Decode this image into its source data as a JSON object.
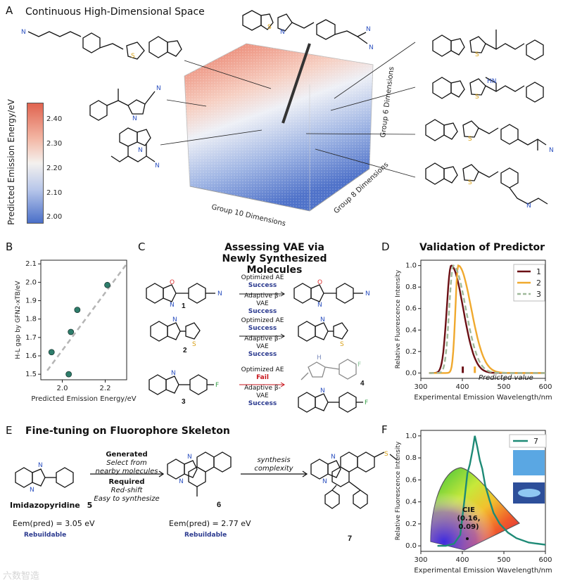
{
  "panels": {
    "A": {
      "letter": "A",
      "title": "Continuous High-Dimensional Space",
      "colorbar_label": "Predicted Emission Energy/eV",
      "colorbar_ticks": [
        "2.40",
        "2.30",
        "2.20",
        "2.10",
        "2.00"
      ],
      "axis_labels": [
        "Group 10 Dimensions",
        "Group 8 Dimensions",
        "Group 6 Dimensions"
      ],
      "colors": {
        "high": "#e0634f",
        "mid": "#f4f1ee",
        "low": "#4a6fc8"
      }
    },
    "B": {
      "letter": "B"
    },
    "C": {
      "letter": "C",
      "title_line1": "Assessing VAE via",
      "title_line2": "Newly Synthesized Molecules",
      "rows": [
        {
          "method1": "Optimized AE",
          "result1": "Success",
          "method2": "Adaptive β-VAE",
          "result2": "Success",
          "compound": "1"
        },
        {
          "method1": "Optimized AE",
          "result1": "Success",
          "method2": "Adaptive β-VAE",
          "result2": "Success",
          "compound": "2"
        },
        {
          "method1": "Optimized AE",
          "result1": "Fail",
          "method2": "Adaptive β-VAE",
          "result2": "Success",
          "compound": "3",
          "product": "4"
        }
      ]
    },
    "D": {
      "letter": "D",
      "title": "Validation of Predictor",
      "annotation": "Predicted value"
    },
    "E": {
      "letter": "E",
      "title": "Fine-tuning on Fluorophore Skeleton",
      "gen_label": "Generated",
      "gen_text1": "Select from",
      "gen_text2": "nearby molecules",
      "req_label": "Required",
      "req_text1": "Red-shift",
      "req_text2": "Easy to synthesize",
      "synth_text1": "synthesis",
      "synth_text2": "complexity",
      "mol5_name": "Imidazopyridine",
      "mol5_num": "5",
      "mol5_energy": "Eem(pred) = 3.05 eV",
      "mol5_tag": "Rebuildable",
      "mol6_num": "6",
      "mol6_energy": "Eem(pred) = 2.77 eV",
      "mol6_tag": "Rebuildable",
      "mol7_num": "7"
    },
    "F": {
      "letter": "F",
      "cie_label": "CIE",
      "cie_coords": "(0.16, 0.09)",
      "legend": "7"
    }
  },
  "watermark": "六数智造",
  "chart_data": [
    {
      "id": "B",
      "type": "scatter",
      "xlabel": "Predicted Emission Energy/eV",
      "ylabel": "H-L gap by GFN2-xTB/eV",
      "xlim": [
        1.9,
        2.3
      ],
      "ylim": [
        1.47,
        2.12
      ],
      "xticks": [
        "2.0",
        "2.2"
      ],
      "yticks": [
        "1.5",
        "1.6",
        "1.7",
        "1.8",
        "1.9",
        "2.0",
        "2.1"
      ],
      "points": [
        [
          1.95,
          1.62
        ],
        [
          2.03,
          1.5
        ],
        [
          2.04,
          1.73
        ],
        [
          2.07,
          1.85
        ],
        [
          2.21,
          1.985
        ]
      ],
      "fit_line": [
        [
          1.93,
          1.52
        ],
        [
          2.3,
          2.1
        ]
      ],
      "marker_color": "#2e7d6b"
    },
    {
      "id": "D",
      "type": "line",
      "xlabel": "Experimental Emission Wavelength/nm",
      "ylabel": "Relative Fluorescence Intensity",
      "xlim": [
        300,
        600
      ],
      "ylim": [
        -0.05,
        1.05
      ],
      "xticks": [
        "300",
        "400",
        "500",
        "600"
      ],
      "yticks": [
        "0.0",
        "0.2",
        "0.4",
        "0.6",
        "0.8",
        "1.0"
      ],
      "series": [
        {
          "name": "1",
          "color": "#6b0f14",
          "style": "solid",
          "peak": 373,
          "left_width": 22,
          "right_width": 48
        },
        {
          "name": "2",
          "color": "#f0a92e",
          "style": "solid",
          "peak": 390,
          "left_width": 14,
          "right_width": 52
        },
        {
          "name": "3",
          "color": "#9fb99a",
          "style": "dashed",
          "peak": 378,
          "left_width": 20,
          "right_width": 50
        }
      ],
      "predicted_markers": [
        {
          "x": 401,
          "color": "#6b0f14"
        },
        {
          "x": 430,
          "color": "#f0a92e"
        }
      ]
    },
    {
      "id": "F",
      "type": "line",
      "xlabel": "Experimental Emission Wavelength/nm",
      "ylabel": "Relative Fluorescence Intensity",
      "xlim": [
        300,
        600
      ],
      "ylim": [
        -0.05,
        1.05
      ],
      "xticks": [
        "300",
        "400",
        "500",
        "600"
      ],
      "yticks": [
        "0.0",
        "0.2",
        "0.4",
        "0.6",
        "0.8",
        "1.0"
      ],
      "series": [
        {
          "name": "7",
          "color": "#1e8a76",
          "x": [
            340,
            360,
            380,
            395,
            405,
            412,
            418,
            425,
            430,
            436,
            442,
            448,
            455,
            465,
            475,
            490,
            510,
            530,
            560,
            600
          ],
          "y": [
            0.0,
            0.0,
            0.02,
            0.1,
            0.42,
            0.66,
            0.74,
            0.88,
            1.0,
            0.9,
            0.78,
            0.7,
            0.55,
            0.42,
            0.3,
            0.2,
            0.12,
            0.07,
            0.03,
            0.01
          ]
        }
      ]
    }
  ]
}
